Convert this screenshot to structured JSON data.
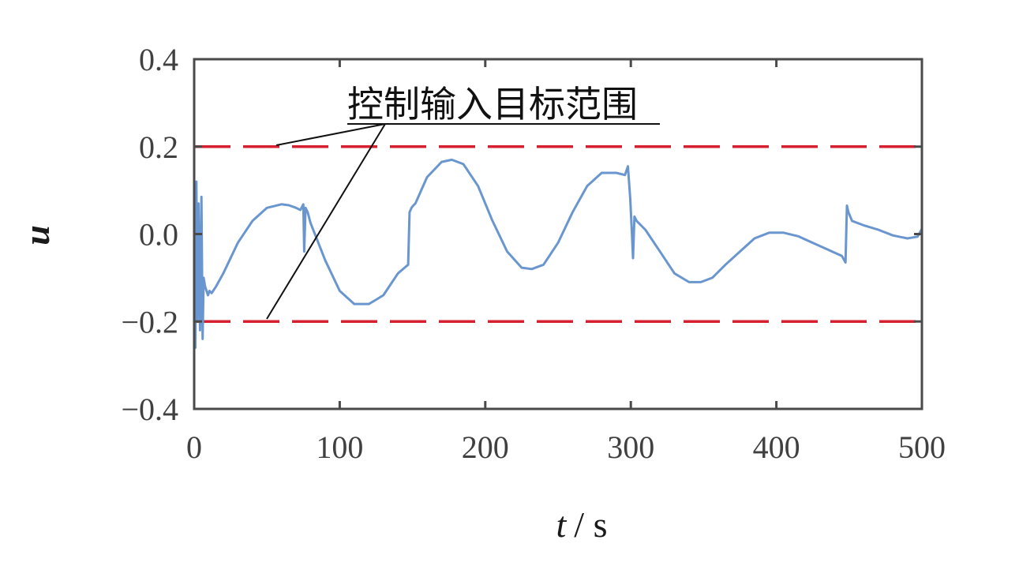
{
  "chart_data": {
    "type": "line",
    "xlabel_var": "t",
    "xlabel_unit": "/ s",
    "ylabel": "u",
    "xlim": [
      0,
      500
    ],
    "ylim": [
      -0.4,
      0.4
    ],
    "xticks": [
      "0",
      "100",
      "200",
      "300",
      "400",
      "500"
    ],
    "yticks": [
      "0.4",
      "0.2",
      "0.0",
      "−0.2",
      "−0.4"
    ],
    "grid": false,
    "annotation": "控制输入目标范围",
    "bounds": {
      "upper": 0.2,
      "lower": -0.2,
      "color": "#d62030",
      "style": "dashed"
    },
    "series": [
      {
        "color": "#6a96cf",
        "x": [
          0,
          0.8,
          1.5,
          2.2,
          3.0,
          4.0,
          5.0,
          5.8,
          6.5,
          7.5,
          8.5,
          9.5,
          10.5,
          12,
          15,
          20,
          30,
          40,
          50,
          60,
          65,
          70,
          73,
          75,
          75.6,
          76.5,
          78,
          80,
          90,
          100,
          110,
          120,
          125,
          130,
          140,
          147,
          148,
          149.3,
          150.5,
          152,
          160,
          170,
          177,
          185,
          195,
          205,
          215,
          225,
          232,
          240,
          250,
          260,
          270,
          280,
          290,
          296,
          298,
          299.6,
          300.5,
          301.5,
          302.5,
          304,
          310,
          320,
          330,
          340,
          348,
          356,
          365,
          375,
          385,
          395,
          405,
          415,
          425,
          435,
          445,
          447.5,
          448.5,
          449.5,
          452,
          460,
          470,
          480,
          490,
          497,
          500
        ],
        "y": [
          0.06,
          -0.26,
          0.12,
          -0.2,
          0.07,
          -0.22,
          0.085,
          -0.24,
          -0.1,
          -0.12,
          -0.13,
          -0.14,
          -0.13,
          -0.135,
          -0.12,
          -0.09,
          -0.02,
          0.03,
          0.06,
          0.068,
          0.066,
          0.06,
          0.055,
          0.068,
          -0.04,
          0.06,
          0.05,
          0.025,
          -0.06,
          -0.13,
          -0.16,
          -0.16,
          -0.15,
          -0.14,
          -0.09,
          -0.07,
          0.05,
          0.06,
          0.065,
          0.07,
          0.13,
          0.165,
          0.17,
          0.16,
          0.11,
          0.03,
          -0.04,
          -0.077,
          -0.08,
          -0.07,
          -0.02,
          0.05,
          0.11,
          0.14,
          0.14,
          0.135,
          0.155,
          0.08,
          0.02,
          -0.055,
          0.04,
          0.03,
          0.01,
          -0.04,
          -0.09,
          -0.11,
          -0.11,
          -0.1,
          -0.07,
          -0.04,
          -0.01,
          0.003,
          0.003,
          -0.005,
          -0.02,
          -0.035,
          -0.05,
          -0.065,
          0.065,
          0.05,
          0.03,
          0.02,
          0.01,
          -0.003,
          -0.01,
          -0.006,
          0.012
        ]
      }
    ]
  }
}
